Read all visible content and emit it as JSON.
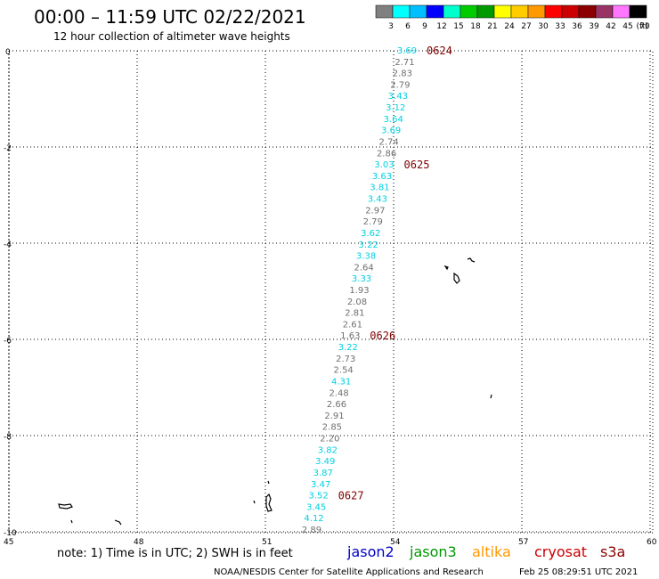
{
  "header": {
    "title": "00:00 – 11:59 UTC 02/22/2021",
    "subtitle": "12 hour collection of altimeter wave heights"
  },
  "colorbar": {
    "unit": "(ft)",
    "bins": [
      {
        "label": "3",
        "color": "#808080"
      },
      {
        "label": "6",
        "color": "#00ffff"
      },
      {
        "label": "9",
        "color": "#00bfff"
      },
      {
        "label": "12",
        "color": "#0000ff"
      },
      {
        "label": "15",
        "color": "#00ffcc"
      },
      {
        "label": "18",
        "color": "#00cc00"
      },
      {
        "label": "21",
        "color": "#009900"
      },
      {
        "label": "24",
        "color": "#ffff00"
      },
      {
        "label": "27",
        "color": "#ffcc00"
      },
      {
        "label": "30",
        "color": "#ff9900"
      },
      {
        "label": "33",
        "color": "#ff0000"
      },
      {
        "label": "36",
        "color": "#cc0000"
      },
      {
        "label": "39",
        "color": "#8b0000"
      },
      {
        "label": "42",
        "color": "#993366"
      },
      {
        "label": "45",
        "color": "#ff77ff"
      },
      {
        "label": "70",
        "color": "#000000"
      }
    ]
  },
  "axes": {
    "lat_labels": [
      "0",
      "-2",
      "-4",
      "-6",
      "-8",
      "-10"
    ],
    "lon_labels": [
      "45",
      "48",
      "51",
      "54",
      "57",
      "60"
    ]
  },
  "track": {
    "points": [
      {
        "v": "3.69",
        "c": "cyan"
      },
      {
        "v": "2.71",
        "c": "gray"
      },
      {
        "v": "2.83",
        "c": "gray"
      },
      {
        "v": "2.79",
        "c": "gray"
      },
      {
        "v": "3.43",
        "c": "cyan"
      },
      {
        "v": "3.12",
        "c": "cyan"
      },
      {
        "v": "3.64",
        "c": "cyan"
      },
      {
        "v": "3.69",
        "c": "cyan"
      },
      {
        "v": "2.74",
        "c": "gray"
      },
      {
        "v": "2.86",
        "c": "gray"
      },
      {
        "v": "3.03",
        "c": "cyan"
      },
      {
        "v": "3.63",
        "c": "cyan"
      },
      {
        "v": "3.81",
        "c": "cyan"
      },
      {
        "v": "3.43",
        "c": "cyan"
      },
      {
        "v": "2.97",
        "c": "gray"
      },
      {
        "v": "2.79",
        "c": "gray"
      },
      {
        "v": "3.62",
        "c": "cyan"
      },
      {
        "v": "3.22",
        "c": "cyan"
      },
      {
        "v": "3.38",
        "c": "cyan"
      },
      {
        "v": "2.64",
        "c": "gray"
      },
      {
        "v": "3.33",
        "c": "cyan"
      },
      {
        "v": "1.93",
        "c": "gray"
      },
      {
        "v": "2.08",
        "c": "gray"
      },
      {
        "v": "2.81",
        "c": "gray"
      },
      {
        "v": "2.61",
        "c": "gray"
      },
      {
        "v": "1.63",
        "c": "gray"
      },
      {
        "v": "3.22",
        "c": "cyan"
      },
      {
        "v": "2.73",
        "c": "gray"
      },
      {
        "v": "2.54",
        "c": "gray"
      },
      {
        "v": "4.31",
        "c": "cyan"
      },
      {
        "v": "2.48",
        "c": "gray"
      },
      {
        "v": "2.66",
        "c": "gray"
      },
      {
        "v": "2.91",
        "c": "gray"
      },
      {
        "v": "2.85",
        "c": "gray"
      },
      {
        "v": "2.20",
        "c": "gray"
      },
      {
        "v": "3.82",
        "c": "cyan"
      },
      {
        "v": "3.49",
        "c": "cyan"
      },
      {
        "v": "3.87",
        "c": "cyan"
      },
      {
        "v": "3.47",
        "c": "cyan"
      },
      {
        "v": "3.52",
        "c": "cyan"
      },
      {
        "v": "3.45",
        "c": "cyan"
      },
      {
        "v": "4.12",
        "c": "cyan"
      },
      {
        "v": "2.89",
        "c": "gray"
      }
    ],
    "time_labels": [
      {
        "label": "0624",
        "index": 0
      },
      {
        "label": "0625",
        "index": 10
      },
      {
        "label": "0626",
        "index": 25
      },
      {
        "label": "0627",
        "index": 39
      }
    ]
  },
  "footer": {
    "note": "note: 1) Time is in UTC; 2) SWH is in feet",
    "satellites": [
      {
        "name": "jason2",
        "color": "#0000cc"
      },
      {
        "name": "jason3",
        "color": "#009900"
      },
      {
        "name": "altika",
        "color": "#ff9900"
      },
      {
        "name": "cryosat",
        "color": "#cc0000"
      },
      {
        "name": "s3a",
        "color": "#8b0000"
      }
    ],
    "credit": "NOAA/NESDIS Center for Satellite Applications and Research",
    "timestamp": "Feb 25 08:29:51 UTC 2021"
  }
}
